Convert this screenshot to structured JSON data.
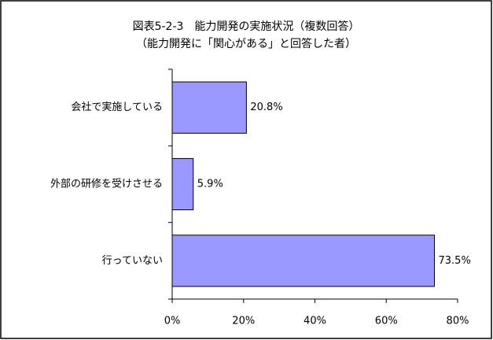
{
  "chart_data": {
    "type": "bar",
    "orientation": "horizontal",
    "title": "図表5-2-3　能力開発の実施状況（複数回答）",
    "subtitle": "（能力開発に「関心がある」と回答した者）",
    "categories": [
      "会社で実施している",
      "外部の研修を受けさせる",
      "行っていない"
    ],
    "values": [
      20.8,
      5.9,
      73.5
    ],
    "value_labels": [
      "20.8%",
      "5.9%",
      "73.5%"
    ],
    "color": "#9999ff",
    "xlim": [
      0,
      80
    ],
    "xticks": [
      {
        "value": 0,
        "label": "0%"
      },
      {
        "value": 20,
        "label": "20%"
      },
      {
        "value": 40,
        "label": "40%"
      },
      {
        "value": 60,
        "label": "60%"
      },
      {
        "value": 80,
        "label": "80%"
      }
    ],
    "grid": false
  }
}
